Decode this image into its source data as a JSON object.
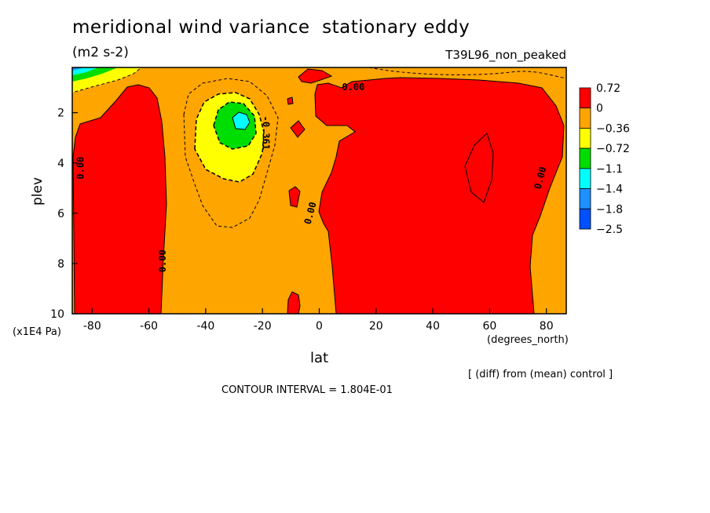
{
  "chart_data": {
    "type": "heatmap",
    "title": "meridional wind variance  stationary eddy",
    "units": "(m2 s-2)",
    "run_name": "T39L96_non_peaked",
    "xlabel": "lat",
    "xunit": "(degrees_north)",
    "ylabel": "plev",
    "yunit": "(x1E4 Pa)",
    "xlim": [
      -87,
      87
    ],
    "ylim": [
      10,
      0.2
    ],
    "x_ticks": [
      -80,
      -60,
      -40,
      -20,
      0,
      20,
      40,
      60,
      80
    ],
    "y_ticks": [
      2,
      4,
      6,
      8,
      10
    ],
    "note": "[ (diff) from (mean) control ]",
    "contour_interval": "CONTOUR INTERVAL = 1.804E-01",
    "colorbar": {
      "labels": [
        "0.72",
        "0",
        "−0.36",
        "−0.72",
        "−1.1",
        "−1.4",
        "−1.8",
        "−2.5"
      ],
      "colors": [
        "#ff0000",
        "#ffa500",
        "#ffff00",
        "#00dd00",
        "#00ffff",
        "#1e90ff",
        "#0050ff"
      ]
    },
    "contour_labels": [
      {
        "text": "0.00",
        "lon": -84,
        "plev": 4.2,
        "rotate": -90
      },
      {
        "text": "0.00",
        "lon": -55,
        "plev": 7.9,
        "rotate": -90
      },
      {
        "text": "0.00",
        "lon": 12,
        "plev": 1.0,
        "rotate": 0
      },
      {
        "text": "0.00",
        "lon": -3,
        "plev": 6.0,
        "rotate": -75
      },
      {
        "text": "0.00",
        "lon": 78,
        "plev": 4.6,
        "rotate": -75
      },
      {
        "text": "-0.361",
        "lon": -19,
        "plev": 2.8,
        "rotate": 90
      }
    ]
  }
}
